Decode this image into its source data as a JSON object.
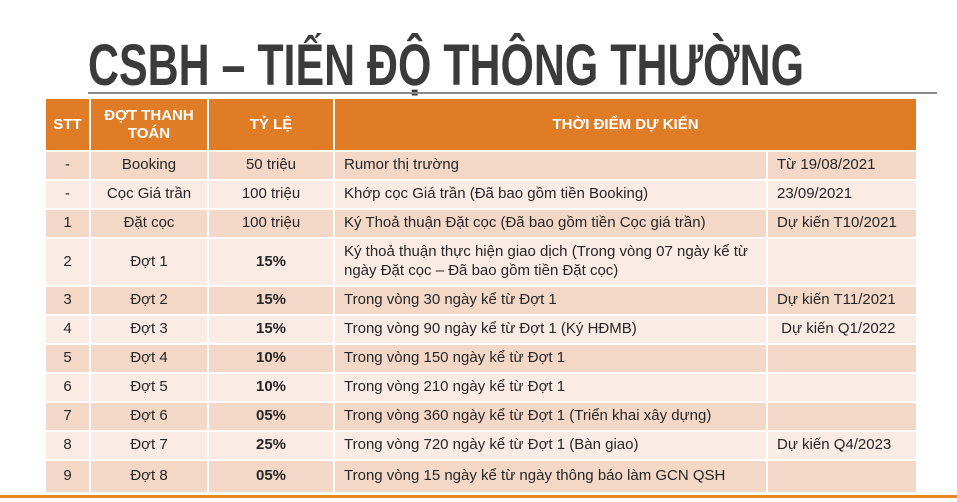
{
  "slide": {
    "title": "CSBH – TIẾN ĐỘ THÔNG THƯỜNG",
    "accent_color": "#E07C25",
    "band_dark_color": "#F4D8C7",
    "band_light_color": "#FAECE4",
    "bottom_bar_color": "#E8861E",
    "title_color": "#3B3B3B"
  },
  "table": {
    "headers": {
      "stt": "STT",
      "phase": "ĐỢT THANH TOÁN",
      "rate": "TỶ LỆ",
      "timing": "THỜI ĐIỂM DỰ KIẾN"
    },
    "rows": [
      {
        "stt": "-",
        "phase": "Booking",
        "rate": "50 triệu",
        "desc": "Rumor thị trường",
        "date": "Từ 19/08/2021"
      },
      {
        "stt": "-",
        "phase": "Cọc Giá trần",
        "rate": "100 triệu",
        "desc": "Khớp cọc Giá trần (Đã bao gồm tiền Booking)",
        "date": "23/09/2021"
      },
      {
        "stt": "1",
        "phase": "Đặt cọc",
        "rate": "100 triệu",
        "desc": "Ký Thoả thuận Đặt cọc (Đã bao gồm tiền Cọc giá trần)",
        "date": "Dự kiến T10/2021"
      },
      {
        "stt": "2",
        "phase": "Đợt 1",
        "rate": "15%",
        "desc": "Ký thoả thuận thực hiện giao dịch (Trong vòng 07 ngày kể từ ngày Đặt cọc – Đã bao gồm tiền Đặt cọc)",
        "date": ""
      },
      {
        "stt": "3",
        "phase": "Đợt 2",
        "rate": "15%",
        "desc": "Trong vòng 30 ngày kể từ Đợt 1",
        "date": "Dự kiến T11/2021"
      },
      {
        "stt": "4",
        "phase": "Đợt 3",
        "rate": "15%",
        "desc": "Trong vòng 90 ngày kể từ Đợt 1 (Ký HĐMB)",
        "date": " Dự kiến Q1/2022"
      },
      {
        "stt": "5",
        "phase": "Đợt 4",
        "rate": "10%",
        "desc": "Trong vòng 150 ngày kể từ Đợt 1",
        "date": ""
      },
      {
        "stt": "6",
        "phase": "Đợt 5",
        "rate": "10%",
        "desc": "Trong vòng 210 ngày kể từ Đợt 1",
        "date": ""
      },
      {
        "stt": "7",
        "phase": "Đợt 6",
        "rate": "05%",
        "desc": "Trong vòng 360 ngày kể từ Đợt 1 (Triển khai xây dựng)",
        "date": ""
      },
      {
        "stt": "8",
        "phase": "Đợt 7",
        "rate": "25%",
        "desc": "Trong vòng 720 ngày kể từ Đợt 1 (Bàn giao)",
        "date": "Dự kiến Q4/2023"
      },
      {
        "stt": "9",
        "phase": "Đợt 8",
        "rate": "05%",
        "desc": "Trong vòng 15 ngày kể từ ngày thông báo làm GCN QSH",
        "date": ""
      }
    ]
  }
}
